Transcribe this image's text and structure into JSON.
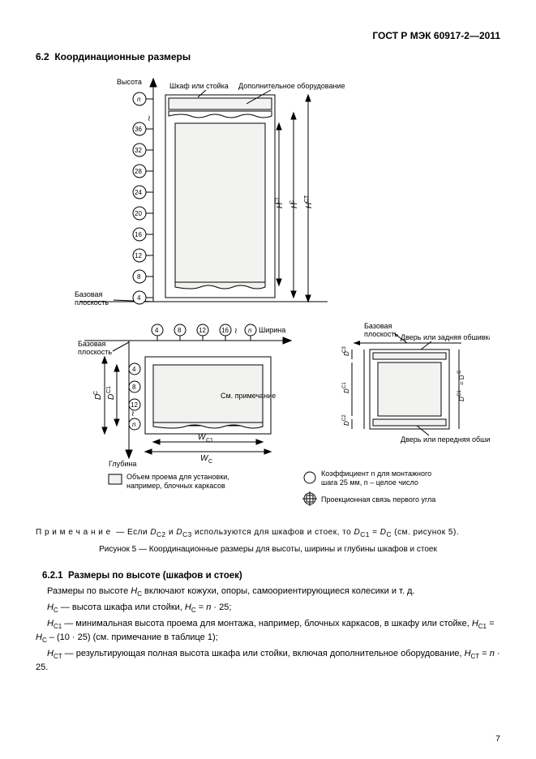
{
  "doc_id": "ГОСТ Р МЭК 60917-2—2011",
  "section_no": "6.2",
  "section_title": "Координационные размеры",
  "figure": {
    "top": {
      "y_axis_label": "Высота",
      "callout_left": "Шкаф или стойка",
      "callout_right": "Дополнительное оборудование",
      "ticks": [
        "4",
        "8",
        "12",
        "16",
        "20",
        "24",
        "28",
        "32",
        "36",
        "n"
      ],
      "baseline_label": "Базовая\nплоскость",
      "dim_inner": "H_C1",
      "dim_outer": "H_C",
      "dim_outer2": "H_CT"
    },
    "bottom_left": {
      "x_axis_label": "Ширина",
      "y_axis_label": "Глубина",
      "x_ticks": [
        "4",
        "8",
        "12",
        "16",
        "n"
      ],
      "y_ticks": [
        "4",
        "8",
        "12",
        "n"
      ],
      "baseline_label": "Базовая\nплоскость",
      "note": "См. примечание",
      "w_inner": "W_C1",
      "w_outer": "W_C",
      "d_outer": "D_C",
      "d_inner": "D_C1"
    },
    "bottom_right": {
      "baseline_label": "Базовая\nплоскость",
      "callout_top": "Дверь или задняя обшивка",
      "callout_bottom": "Дверь или передняя обшивка",
      "dims": [
        "D_C3",
        "D_C1",
        "D_C2",
        "D_C1 = D_C"
      ]
    },
    "legend": {
      "box": "Объем проема для установки,\nнапример, блочных каркасов",
      "circle1": "Коэффициент n для монтажного\nшага 25 мм, n – целое число",
      "circle2": "Проекционная связь первого угла"
    }
  },
  "note_text": "П р и м е ч а н и е  — Если D_C2 и D_C3 используются для шкафов и стоек, то D_C1 = D_C (см. рисунок 5).",
  "caption": "Рисунок 5 — Координационные размеры для высоты, ширины и глубины шкафов и стоек",
  "sub_no": "6.2.1",
  "sub_title": "Размеры по высоте (шкафов и стоек)",
  "paras": [
    "Размеры по высоте H_C включают кожухи, опоры, самоориентирующиеся колесики и т. д.",
    "H_C — высота шкафа или стойки, H_C = n · 25;",
    "H_C1 — минимальная высота проема для монтажа, например, блочных каркасов, в шкафу или стойке, H_C1 = H_C – (10 · 25) (см. примечание в таблице 1);",
    "H_CT — результирующая полная высота шкафа или стойки, включая дополнительное оборудование, H_CT = n · 25."
  ],
  "page_no": "7",
  "colors": {
    "ink": "#000000",
    "fill": "#f2f2f0",
    "thin": "#000000"
  }
}
